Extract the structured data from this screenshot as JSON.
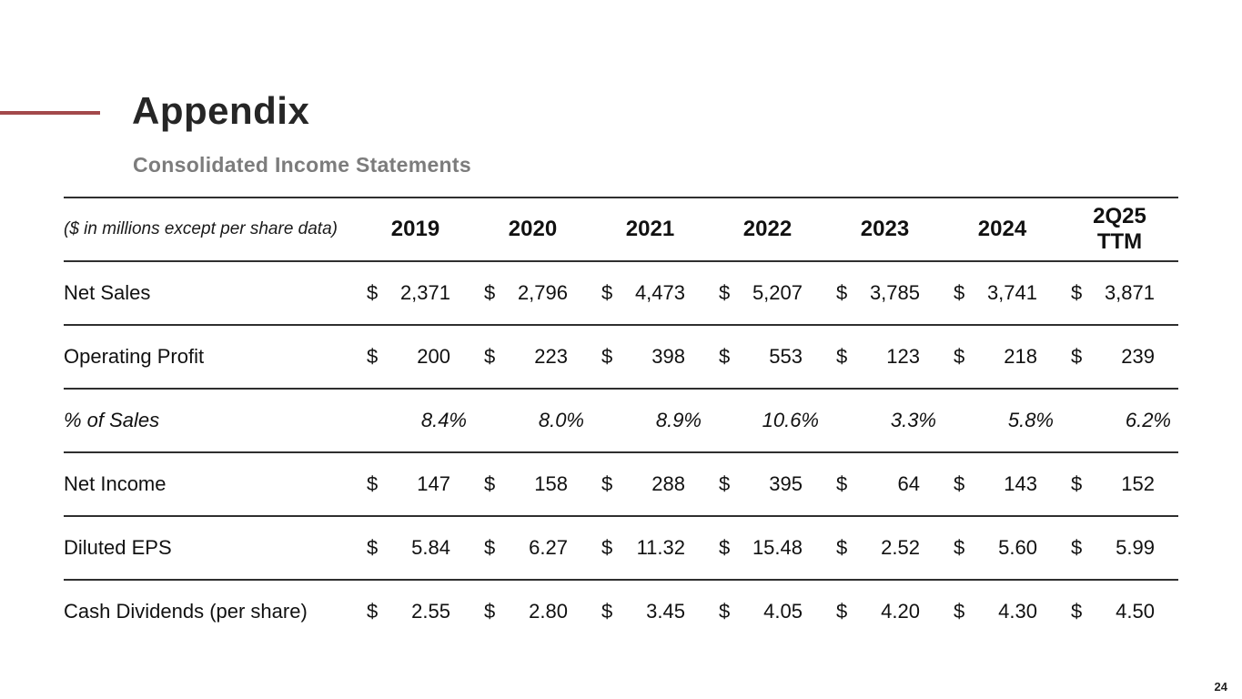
{
  "slide": {
    "title": "Appendix",
    "subtitle": "Consolidated Income Statements",
    "page_number": "24",
    "accent_color": "#A3494B",
    "rule_color": "#2F2F2F",
    "title_color": "#262626",
    "subtitle_color": "#7C7C7C"
  },
  "table": {
    "unit_note": "($ in millions except per share data)",
    "currency_symbol": "$",
    "columns": [
      "2019",
      "2020",
      "2021",
      "2022",
      "2023",
      "2024",
      "2Q25\nTTM"
    ],
    "rows": [
      {
        "label": "Net Sales",
        "currency": true,
        "values": [
          "2,371",
          "2,796",
          "4,473",
          "5,207",
          "3,785",
          "3,741",
          "3,871"
        ]
      },
      {
        "label": "Operating Profit",
        "currency": true,
        "values": [
          "200",
          "223",
          "398",
          "553",
          "123",
          "218",
          "239"
        ]
      },
      {
        "label": "% of Sales",
        "currency": false,
        "values": [
          "8.4%",
          "8.0%",
          "8.9%",
          "10.6%",
          "3.3%",
          "5.8%",
          "6.2%"
        ]
      },
      {
        "label": "Net Income",
        "currency": true,
        "values": [
          "147",
          "158",
          "288",
          "395",
          "64",
          "143",
          "152"
        ]
      },
      {
        "label": "Diluted EPS",
        "currency": true,
        "values": [
          "5.84",
          "6.27",
          "11.32",
          "15.48",
          "2.52",
          "5.60",
          "5.99"
        ]
      },
      {
        "label": "Cash Dividends (per share)",
        "currency": true,
        "values": [
          "2.55",
          "2.80",
          "3.45",
          "4.05",
          "4.20",
          "4.30",
          "4.50"
        ]
      }
    ]
  }
}
